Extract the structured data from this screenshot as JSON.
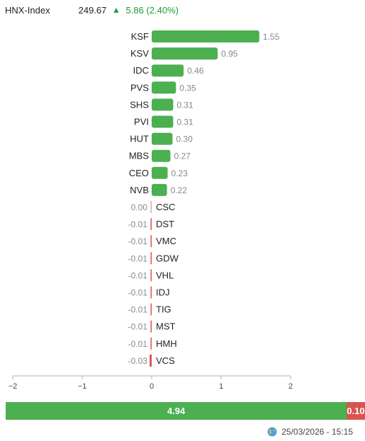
{
  "header": {
    "index_name": "HNX-Index",
    "index_value": "249.67",
    "change": "5.86 (2.40%)",
    "arrow": "▲",
    "up_color": "#1e9a32"
  },
  "chart_data": {
    "type": "bar",
    "orientation": "horizontal",
    "categories": [
      "KSF",
      "KSV",
      "IDC",
      "PVS",
      "SHS",
      "PVI",
      "HUT",
      "MBS",
      "CEO",
      "NVB",
      "CSC",
      "DST",
      "VMC",
      "GDW",
      "VHL",
      "IDJ",
      "TIG",
      "MST",
      "HMH",
      "VCS"
    ],
    "values": [
      1.55,
      0.95,
      0.46,
      0.35,
      0.31,
      0.31,
      0.3,
      0.27,
      0.23,
      0.22,
      0.0,
      -0.01,
      -0.01,
      -0.01,
      -0.01,
      -0.01,
      -0.01,
      -0.01,
      -0.01,
      -0.03
    ],
    "value_labels": [
      "1.55",
      "0.95",
      "0.46",
      "0.35",
      "0.31",
      "0.31",
      "0.30",
      "0.27",
      "0.23",
      "0.22",
      "0.00",
      "-0.01",
      "-0.01",
      "-0.01",
      "-0.01",
      "-0.01",
      "-0.01",
      "-0.01",
      "-0.01",
      "-0.03"
    ],
    "xlim": [
      -2,
      2
    ],
    "xticks": [
      -2,
      -1,
      0,
      1,
      2
    ],
    "xtick_labels": [
      "−2",
      "−1",
      "0",
      "1",
      "2"
    ],
    "positive_color": "#4caf50",
    "negative_color": "#d9534f",
    "grid": false
  },
  "summary": {
    "positive_value": 4.94,
    "negative_value": 0.1,
    "positive_label": "4.94",
    "negative_label": "0.10"
  },
  "footer": {
    "timestamp": "25/03/2026 - 15:15"
  }
}
